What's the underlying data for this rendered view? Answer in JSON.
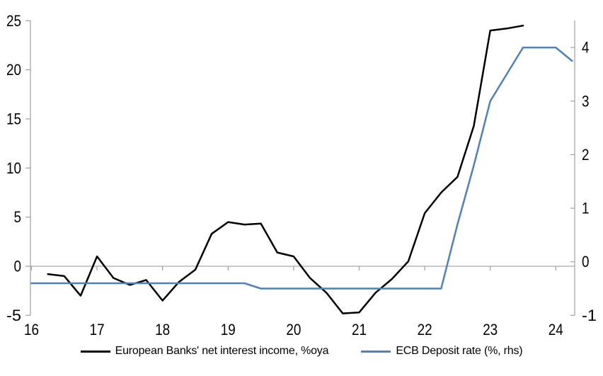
{
  "colors": {
    "background": "#ffffff",
    "axis_gray": "#a6a6a6",
    "series_nii": "#000000",
    "series_ecb": "#4e81bd",
    "text": "#000000"
  },
  "legend": {
    "position": "bottom",
    "items": [
      {
        "label": "European Banks' net interest income, %oya",
        "color": "#000000"
      },
      {
        "label": "ECB Deposit rate (%, rhs)",
        "color": "#4e81bd"
      }
    ]
  },
  "chart_data": {
    "type": "line",
    "title": "",
    "grid": "zero-line-only",
    "legend_position": "bottom",
    "x_axis": {
      "tick_values": [
        16,
        17,
        18,
        19,
        20,
        21,
        22,
        23,
        24
      ],
      "tick_labels": [
        "16",
        "17",
        "18",
        "19",
        "20",
        "21",
        "22",
        "23",
        "24"
      ],
      "range": [
        16,
        24.3
      ]
    },
    "left_axis": {
      "tick_values": [
        -5,
        0,
        5,
        10,
        15,
        20,
        25
      ],
      "tick_labels": [
        "-5",
        "0",
        "5",
        "10",
        "15",
        "20",
        "25"
      ],
      "range": [
        -5,
        25
      ]
    },
    "right_axis": {
      "tick_values": [
        -1,
        0,
        1,
        2,
        3,
        4
      ],
      "tick_labels": [
        "-1",
        "0",
        "1",
        "2",
        "3",
        "4"
      ],
      "range": [
        -1,
        4.5
      ]
    },
    "series": [
      {
        "name": "European Banks' net interest income, %oya",
        "axis": "left",
        "color": "#000000",
        "x": [
          16.25,
          16.5,
          16.75,
          17.0,
          17.25,
          17.5,
          17.75,
          18.0,
          18.25,
          18.5,
          18.75,
          19.0,
          19.25,
          19.5,
          19.75,
          20.0,
          20.25,
          20.5,
          20.75,
          21.0,
          21.25,
          21.5,
          21.75,
          22.0,
          22.25,
          22.5,
          22.75,
          23.0,
          23.25,
          23.5
        ],
        "values": [
          -0.8,
          -1.0,
          -3.0,
          1.0,
          -1.2,
          -1.9,
          -1.4,
          -3.5,
          -1.6,
          -0.35,
          3.3,
          4.5,
          4.25,
          4.35,
          1.4,
          1.0,
          -1.2,
          -2.7,
          -4.8,
          -4.7,
          -2.7,
          -1.3,
          0.5,
          5.4,
          7.5,
          9.1,
          14.3,
          24.0,
          24.2,
          24.5
        ]
      },
      {
        "name": "ECB Deposit rate (%, rhs)",
        "axis": "right",
        "color": "#4e81bd",
        "x": [
          16.0,
          16.25,
          16.5,
          16.75,
          17.0,
          17.25,
          17.5,
          17.75,
          18.0,
          18.25,
          18.5,
          18.75,
          19.0,
          19.25,
          19.5,
          19.75,
          20.0,
          20.25,
          20.5,
          20.75,
          21.0,
          21.25,
          21.5,
          21.75,
          22.0,
          22.25,
          22.5,
          22.75,
          23.0,
          23.25,
          23.5,
          23.75,
          24.0,
          24.25
        ],
        "values": [
          -0.4,
          -0.4,
          -0.4,
          -0.4,
          -0.4,
          -0.4,
          -0.4,
          -0.4,
          -0.4,
          -0.4,
          -0.4,
          -0.4,
          -0.4,
          -0.4,
          -0.5,
          -0.5,
          -0.5,
          -0.5,
          -0.5,
          -0.5,
          -0.5,
          -0.5,
          -0.5,
          -0.5,
          -0.5,
          -0.5,
          0.7,
          1.8,
          3.0,
          3.5,
          4.0,
          4.0,
          4.0,
          3.75
        ]
      }
    ]
  }
}
